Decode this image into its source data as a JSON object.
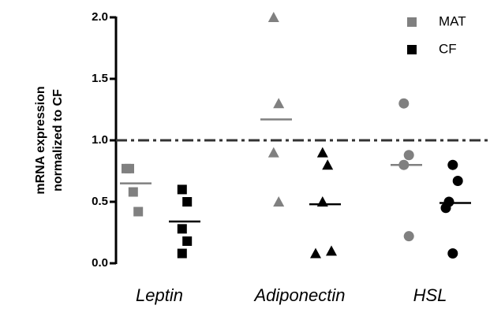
{
  "chart_data": {
    "type": "dot",
    "y_label": [
      "mRNA expression",
      "normalized to CF"
    ],
    "categories": [
      "Leptin",
      "Adiponectin",
      "HSL"
    ],
    "markers": [
      "square",
      "triangle",
      "circle"
    ],
    "series": [
      {
        "name": "MAT",
        "color": "#808080",
        "values": [
          [
            0.77,
            0.77,
            0.58,
            0.42
          ],
          [
            2.0,
            1.3,
            0.9,
            0.5
          ],
          [
            1.3,
            0.88,
            0.8,
            0.22
          ]
        ],
        "means": [
          0.65,
          1.17,
          0.8
        ]
      },
      {
        "name": "CF",
        "color": "#000000",
        "values": [
          [
            0.6,
            0.5,
            0.28,
            0.18,
            0.08
          ],
          [
            0.9,
            0.8,
            0.5,
            0.1,
            0.08
          ],
          [
            0.8,
            0.67,
            0.5,
            0.45,
            0.08
          ]
        ],
        "means": [
          0.34,
          0.48,
          0.49
        ]
      }
    ],
    "reference_line": 1.0,
    "ylim": [
      0,
      2
    ],
    "yticks": [
      {
        "value": 0,
        "label": "0.0"
      },
      0.5,
      {
        "value": 1,
        "label": "1.0"
      },
      1.5,
      {
        "value": 2,
        "label": "2.0"
      }
    ]
  }
}
